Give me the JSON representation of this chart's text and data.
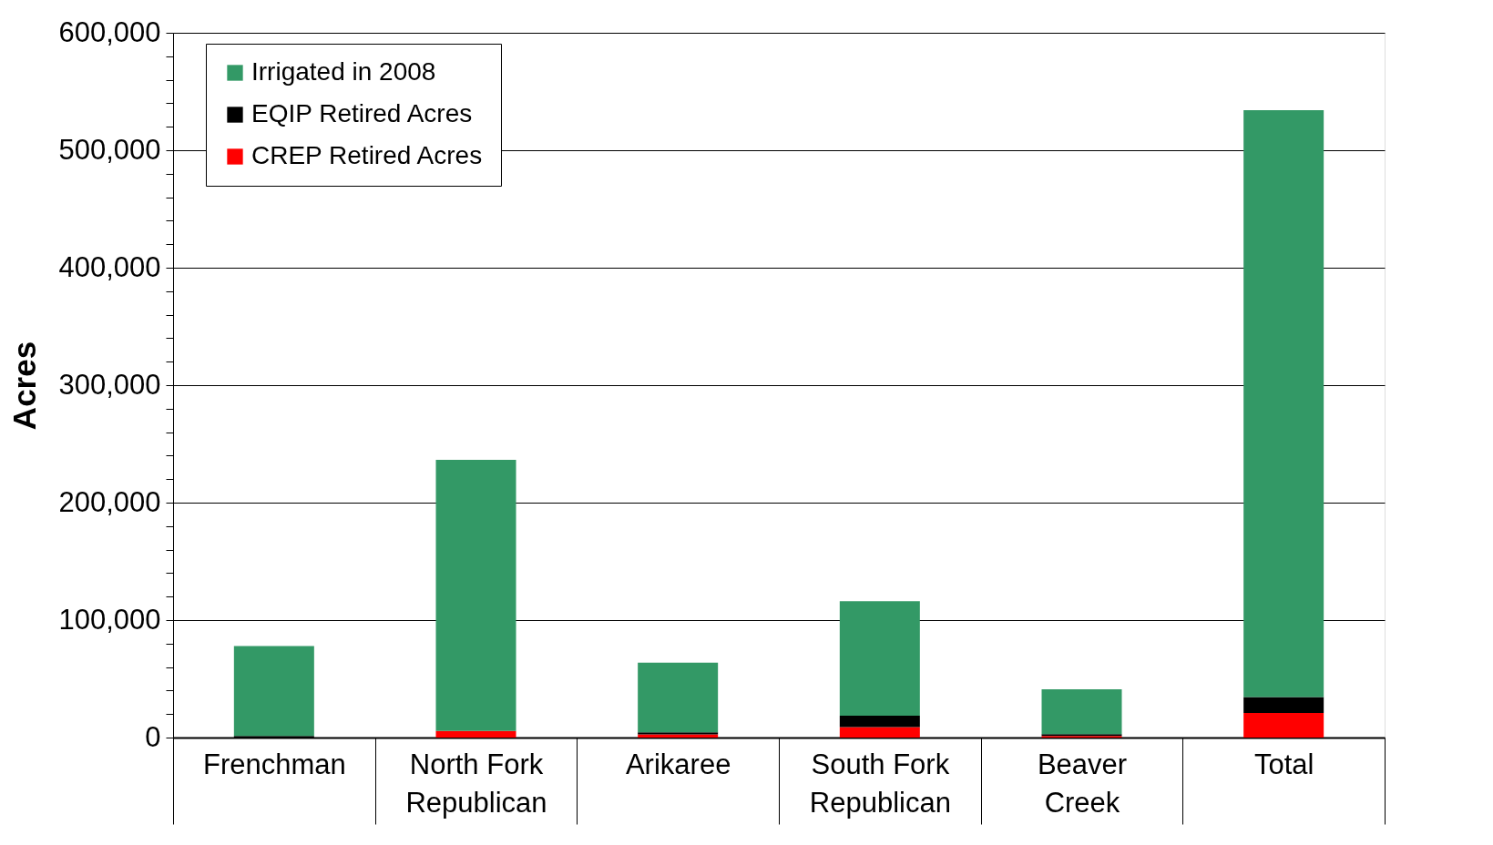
{
  "chart_data": {
    "type": "bar",
    "stacked": true,
    "ylabel": "Acres",
    "categories": [
      "Frenchman",
      "North Fork Republican",
      "Arikaree",
      "South Fork Republican",
      "Beaver Creek",
      "Total"
    ],
    "series": [
      {
        "name": "CREP Retired Acres",
        "color": "#ff0000",
        "values": [
          0,
          5700,
          2700,
          9000,
          1300,
          21000
        ]
      },
      {
        "name": "EQIP Retired Acres",
        "color": "#000000",
        "values": [
          1300,
          0,
          1700,
          9700,
          1700,
          13400
        ]
      },
      {
        "name": "Irrigated in 2008",
        "color": "#339966",
        "values": [
          76600,
          230700,
          59400,
          97300,
          38100,
          499700
        ]
      }
    ],
    "ylim": [
      0,
      600000
    ],
    "yticks": [
      0,
      {
        "value": 20000,
        "label": null
      },
      {
        "value": 40000,
        "label": null
      },
      {
        "value": 60000,
        "label": null
      },
      {
        "value": 80000,
        "label": null
      },
      {
        "value": 100000,
        "label": "100,000"
      },
      {
        "value": 120000,
        "label": null
      },
      {
        "value": 140000,
        "label": null
      },
      {
        "value": 160000,
        "label": null
      },
      {
        "value": 180000,
        "label": null
      },
      {
        "value": 200000,
        "label": "200,000"
      },
      {
        "value": 220000,
        "label": null
      },
      {
        "value": 240000,
        "label": null
      },
      {
        "value": 260000,
        "label": null
      },
      {
        "value": 280000,
        "label": null
      },
      {
        "value": 300000,
        "label": "300,000"
      },
      {
        "value": 320000,
        "label": null
      },
      {
        "value": 340000,
        "label": null
      },
      {
        "value": 360000,
        "label": null
      },
      {
        "value": 380000,
        "label": null
      },
      {
        "value": 400000,
        "label": "400,000"
      },
      {
        "value": 420000,
        "label": null
      },
      {
        "value": 440000,
        "label": null
      },
      {
        "value": 460000,
        "label": null
      },
      {
        "value": 480000,
        "label": null
      },
      {
        "value": 500000,
        "label": "500,000"
      },
      {
        "value": 520000,
        "label": null
      },
      {
        "value": 540000,
        "label": null
      },
      {
        "value": 560000,
        "label": null
      },
      {
        "value": 580000,
        "label": null
      },
      {
        "value": 600000,
        "label": "600,000"
      }
    ],
    "grid": "y",
    "legend": "top left"
  }
}
